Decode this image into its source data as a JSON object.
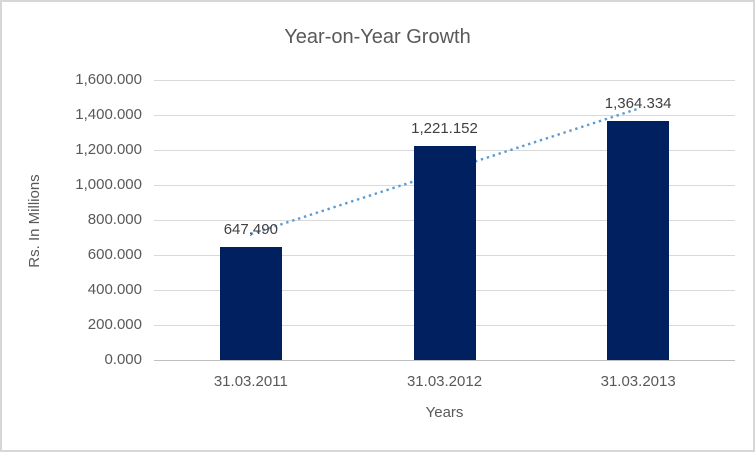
{
  "chart_data": {
    "type": "bar",
    "title": "Year-on-Year Growth",
    "xlabel": "Years",
    "ylabel": "Rs. In Millions",
    "categories": [
      "31.03.2011",
      "31.03.2012",
      "31.03.2013"
    ],
    "values": [
      647.49,
      1221.152,
      1364.334
    ],
    "data_labels": [
      "647,490",
      "1,221.152",
      "1,364.334"
    ],
    "ylim": [
      0,
      1600
    ],
    "ytick_step": 200,
    "ytick_labels": [
      "1,600.000",
      "1,400.000",
      "1,200.000",
      "1,000.000",
      "800.000",
      "600.000",
      "400.000",
      "200.000",
      "0.000"
    ],
    "grid": true,
    "legend": "none",
    "trendline": {
      "kind": "linear",
      "style": "dotted"
    },
    "colors": {
      "bar": "#002060",
      "trendline": "#5B9BD5",
      "gridline": "#D9D9D9",
      "axis_line": "#BFBFBF",
      "title_text": "#595959",
      "tick_text": "#595959",
      "data_label_text": "#404040",
      "background": "#FFFFFF",
      "border": "#D7D7D7"
    }
  }
}
